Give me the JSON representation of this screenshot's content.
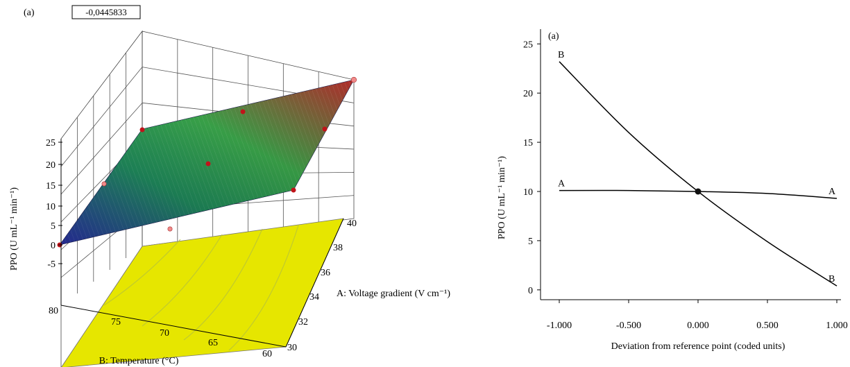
{
  "chart_data": [
    {
      "type": "surface",
      "panel_label": "(a)",
      "value_box": "-0,0445833",
      "zlabel": "PPO (U mL⁻¹ min⁻¹)",
      "z_ticks": [
        "25",
        "20",
        "15",
        "10",
        "5",
        "0",
        "-5"
      ],
      "zlim": [
        -5,
        25
      ],
      "a_axis": {
        "label": "A: Voltage gradient (V cm⁻¹)",
        "ticks": [
          "40",
          "38",
          "36",
          "34",
          "32",
          "30"
        ],
        "range": [
          30,
          40
        ]
      },
      "b_axis": {
        "label": "B: Temperature (°C)",
        "ticks": [
          "80",
          "75",
          "70",
          "65",
          "60"
        ],
        "range": [
          60,
          80
        ]
      },
      "corner_values": [
        {
          "A": 30,
          "B": 80,
          "PPO": 0
        },
        {
          "A": 40,
          "B": 80,
          "PPO": 19
        },
        {
          "A": 30,
          "B": 60,
          "PPO": 10
        },
        {
          "A": 40,
          "B": 60,
          "PPO": 25
        }
      ],
      "design_points": [
        {
          "A": 30,
          "B": 80,
          "PPO": 0
        },
        {
          "A": 40,
          "B": 80,
          "PPO": 19
        },
        {
          "A": 30,
          "B": 60,
          "PPO": 10
        },
        {
          "A": 40,
          "B": 60,
          "PPO": 25
        },
        {
          "A": 35,
          "B": 70,
          "PPO": 12
        },
        {
          "A": 35,
          "B": 80,
          "PPO": 9
        },
        {
          "A": 40,
          "B": 70,
          "PPO": 21
        },
        {
          "A": 30,
          "B": 70,
          "PPO": 5
        },
        {
          "A": 35,
          "B": 60,
          "PPO": 17
        }
      ],
      "floor_color": "#e6e600",
      "surface_colors": [
        "#2a2fa8",
        "#1f8a5c",
        "#3aa54a",
        "#b02a2a"
      ]
    },
    {
      "type": "line",
      "panel_label": "(a)",
      "xlabel": "Deviation from reference point (coded units)",
      "ylabel": "PPO (U mL⁻¹ min⁻¹)",
      "xlim": [
        -1,
        1
      ],
      "ylim": [
        -1,
        26.5
      ],
      "x_ticks": [
        "-1.000",
        "-0.500",
        "0.000",
        "0.500",
        "1.000"
      ],
      "y_ticks": [
        "0",
        "5",
        "10",
        "15",
        "20",
        "25"
      ],
      "series": [
        {
          "name": "A",
          "x": [
            -1,
            -0.5,
            0,
            0.5,
            1
          ],
          "y": [
            10.1,
            10.1,
            10.0,
            9.8,
            9.3
          ]
        },
        {
          "name": "B",
          "x": [
            -1,
            -0.5,
            0,
            0.5,
            1
          ],
          "y": [
            23.2,
            16.0,
            10.0,
            4.9,
            0.4
          ]
        }
      ],
      "reference_point": {
        "x": 0,
        "y": 10.0
      }
    }
  ]
}
